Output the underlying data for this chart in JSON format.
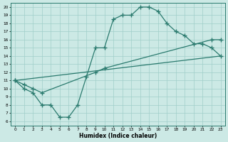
{
  "bg_color": "#cce9e5",
  "grid_color": "#a0cfc9",
  "line_color": "#2a7a6e",
  "xlabel": "Humidex (Indice chaleur)",
  "xlim": [
    -0.5,
    23.5
  ],
  "ylim": [
    5.5,
    20.5
  ],
  "curve1_x": [
    0,
    1,
    2,
    3,
    4,
    5,
    6,
    7,
    8,
    9,
    10,
    11,
    12,
    13,
    14,
    15,
    16,
    17,
    18,
    19,
    20,
    21,
    22,
    23
  ],
  "curve1_y": [
    11,
    10,
    9.5,
    8,
    8,
    6.5,
    6.5,
    8,
    11.5,
    15,
    15,
    18.5,
    19,
    19,
    20,
    20,
    19.5,
    18,
    17,
    16.5,
    15.5,
    15.5,
    15,
    14
  ],
  "curve2_x": [
    0,
    1,
    2,
    3,
    9,
    10,
    22,
    23
  ],
  "curve2_y": [
    11,
    10.5,
    10,
    9.5,
    12,
    12.5,
    16,
    16
  ],
  "curve3_x": [
    0,
    23
  ],
  "curve3_y": [
    11,
    14
  ]
}
